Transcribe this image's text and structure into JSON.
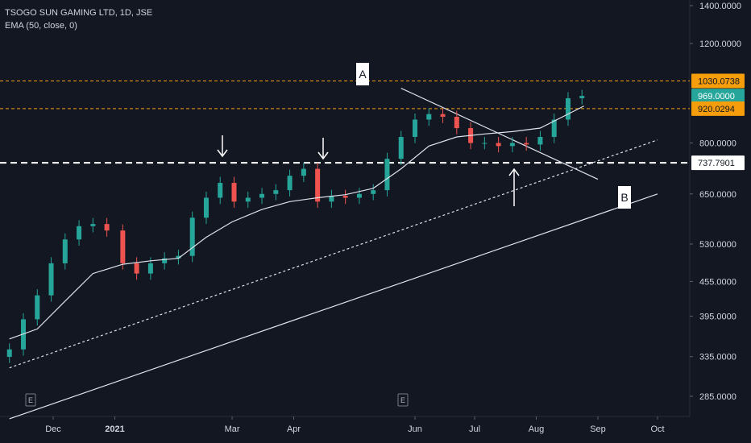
{
  "legend": {
    "symbol": "TSOGO SUN GAMING LTD, 1D, JSE",
    "indicator": "EMA (50, close, 0)"
  },
  "colors": {
    "background": "#131722",
    "up": "#26a69a",
    "down": "#ef5350",
    "axis_text": "#d1d4dc",
    "resistance_line": "#f59d0b",
    "last_price_bg": "#26a69a",
    "trend": "#e0e3eb"
  },
  "chart_data": {
    "type": "candlestick",
    "y_scale": "log",
    "y_ticks": [
      "1400.0000",
      "1200.0000",
      "800.0000",
      "650.0000",
      "530.0000",
      "455.0000",
      "395.0000",
      "335.0000",
      "285.0000"
    ],
    "y_tick_values": [
      1400,
      1200,
      800,
      650,
      530,
      455,
      395,
      335,
      285
    ],
    "x_ticks": [
      "Dec",
      "2021",
      "Mar",
      "Apr",
      "Jun",
      "Jul",
      "Aug",
      "Sep",
      "Oct"
    ],
    "price_labels": [
      {
        "text": "1030.0738",
        "value": 1030.0738,
        "kind": "resistance"
      },
      {
        "text": "969.0000",
        "value": 969,
        "kind": "last"
      },
      {
        "text": "920.0294",
        "value": 920.0294,
        "kind": "resistance"
      },
      {
        "text": "737.7901",
        "value": 737.7901,
        "kind": "support"
      }
    ],
    "annotations": [
      {
        "text": "A",
        "kind": "label"
      },
      {
        "text": "B",
        "kind": "label"
      }
    ],
    "event_markers": [
      "E",
      "E"
    ],
    "series": [
      {
        "name": "EMA (50, close, 0)",
        "points": [
          [
            "2020-11-09",
            360
          ],
          [
            "2020-11-23",
            375
          ],
          [
            "2020-12-07",
            420
          ],
          [
            "2020-12-21",
            470
          ],
          [
            "2021-01-05",
            488
          ],
          [
            "2021-01-19",
            495
          ],
          [
            "2021-02-02",
            500
          ],
          [
            "2021-02-16",
            545
          ],
          [
            "2021-03-01",
            580
          ],
          [
            "2021-03-16",
            610
          ],
          [
            "2021-03-30",
            630
          ],
          [
            "2021-04-13",
            640
          ],
          [
            "2021-04-27",
            648
          ],
          [
            "2021-05-11",
            665
          ],
          [
            "2021-05-25",
            720
          ],
          [
            "2021-06-08",
            790
          ],
          [
            "2021-06-22",
            820
          ],
          [
            "2021-07-06",
            830
          ],
          [
            "2021-07-20",
            838
          ],
          [
            "2021-08-03",
            850
          ],
          [
            "2021-08-17",
            900
          ],
          [
            "2021-08-25",
            930
          ]
        ]
      }
    ],
    "candles_approx_close": [
      [
        "2020-11-09",
        345
      ],
      [
        "2020-11-16",
        390
      ],
      [
        "2020-11-23",
        430
      ],
      [
        "2020-11-30",
        490
      ],
      [
        "2020-12-07",
        540
      ],
      [
        "2020-12-14",
        570
      ],
      [
        "2020-12-21",
        575
      ],
      [
        "2020-12-28",
        560
      ],
      [
        "2021-01-05",
        490
      ],
      [
        "2021-01-12",
        470
      ],
      [
        "2021-01-19",
        490
      ],
      [
        "2021-01-26",
        500
      ],
      [
        "2021-02-02",
        505
      ],
      [
        "2021-02-09",
        590
      ],
      [
        "2021-02-16",
        640
      ],
      [
        "2021-02-23",
        680
      ],
      [
        "2021-03-02",
        630
      ],
      [
        "2021-03-09",
        640
      ],
      [
        "2021-03-16",
        650
      ],
      [
        "2021-03-23",
        660
      ],
      [
        "2021-03-30",
        700
      ],
      [
        "2021-04-06",
        720
      ],
      [
        "2021-04-13",
        630
      ],
      [
        "2021-04-20",
        645
      ],
      [
        "2021-04-27",
        640
      ],
      [
        "2021-05-04",
        650
      ],
      [
        "2021-05-11",
        660
      ],
      [
        "2021-05-18",
        750
      ],
      [
        "2021-05-25",
        820
      ],
      [
        "2021-06-01",
        880
      ],
      [
        "2021-06-08",
        900
      ],
      [
        "2021-06-15",
        890
      ],
      [
        "2021-06-22",
        850
      ],
      [
        "2021-06-29",
        800
      ],
      [
        "2021-07-06",
        800
      ],
      [
        "2021-07-13",
        790
      ],
      [
        "2021-07-20",
        800
      ],
      [
        "2021-07-27",
        795
      ],
      [
        "2021-08-03",
        820
      ],
      [
        "2021-08-10",
        880
      ],
      [
        "2021-08-17",
        960
      ],
      [
        "2021-08-24",
        969
      ]
    ],
    "trendlines": [
      {
        "name": "A",
        "from": [
          "2021-05-25",
          1000
        ],
        "to": [
          "2021-09-01",
          690
        ]
      },
      {
        "name": "B",
        "from": [
          "2020-11-09",
          260
        ],
        "to": [
          "2021-10-01",
          650
        ]
      },
      {
        "name": "dashed-parallel",
        "from": [
          "2020-11-09",
          320
        ],
        "to": [
          "2021-10-01",
          810
        ]
      }
    ]
  }
}
